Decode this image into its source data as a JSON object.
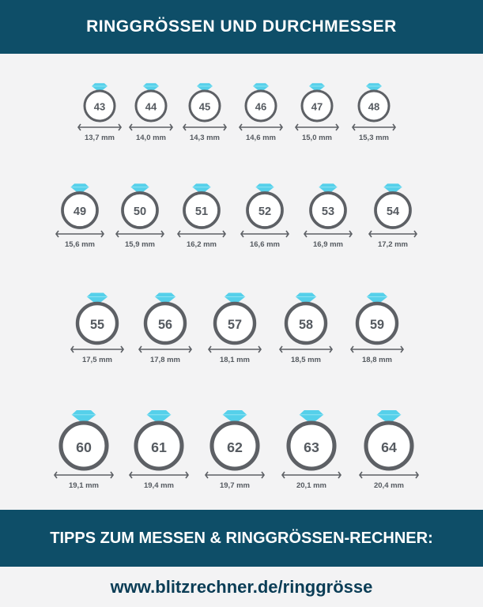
{
  "header": {
    "title": "RINGGRÖSSEN UND DURCHMESSER"
  },
  "footer": {
    "tips": "TIPPS ZUM MESSEN & RINGGRÖSSEN-RECHNER:"
  },
  "link": {
    "url_text": "www.blitzrechner.de/ringgrösse"
  },
  "colors": {
    "banner": "#0e4e68",
    "gem": "#55d0ea",
    "ring": "#5d6065",
    "text": "#555a60"
  },
  "chart_data": {
    "type": "table",
    "rows": [
      [
        {
          "size": "43",
          "diameter": "13,7 mm"
        },
        {
          "size": "44",
          "diameter": "14,0 mm"
        },
        {
          "size": "45",
          "diameter": "14,3 mm"
        },
        {
          "size": "46",
          "diameter": "14,6 mm"
        },
        {
          "size": "47",
          "diameter": "15,0 mm"
        },
        {
          "size": "48",
          "diameter": "15,3 mm"
        }
      ],
      [
        {
          "size": "49",
          "diameter": "15,6 mm"
        },
        {
          "size": "50",
          "diameter": "15,9 mm"
        },
        {
          "size": "51",
          "diameter": "16,2 mm"
        },
        {
          "size": "52",
          "diameter": "16,6 mm"
        },
        {
          "size": "53",
          "diameter": "16,9 mm"
        },
        {
          "size": "54",
          "diameter": "17,2 mm"
        }
      ],
      [
        {
          "size": "55",
          "diameter": "17,5  mm"
        },
        {
          "size": "56",
          "diameter": "17,8 mm"
        },
        {
          "size": "57",
          "diameter": "18,1 mm"
        },
        {
          "size": "58",
          "diameter": "18,5 mm"
        },
        {
          "size": "59",
          "diameter": "18,8 mm"
        }
      ],
      [
        {
          "size": "60",
          "diameter": "19,1 mm"
        },
        {
          "size": "61",
          "diameter": "19,4 mm"
        },
        {
          "size": "62",
          "diameter": "19,7 mm"
        },
        {
          "size": "63",
          "diameter": "20,1 mm"
        },
        {
          "size": "64",
          "diameter": "20,4 mm"
        }
      ]
    ]
  }
}
